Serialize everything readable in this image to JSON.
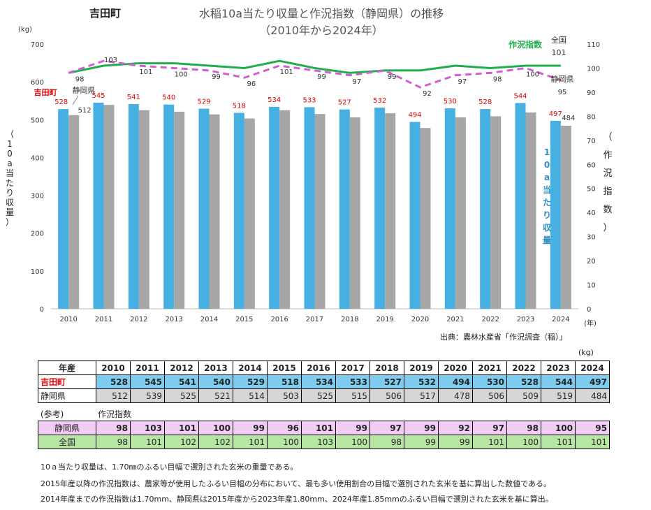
{
  "header": {
    "town": "吉田町",
    "title_line1": "水稲10a当たり収量と作況指数（静岡県）の推移",
    "title_line2": "（2010年から2024年）"
  },
  "chart_data": {
    "type": "bar",
    "categories": [
      "2010",
      "2011",
      "2012",
      "2013",
      "2014",
      "2015",
      "2016",
      "2017",
      "2018",
      "2019",
      "2020",
      "2021",
      "2022",
      "2023",
      "2024"
    ],
    "series": [
      {
        "name": "吉田町",
        "type": "bar",
        "axis": "left",
        "color": "#45b0e1",
        "values": [
          528,
          545,
          541,
          540,
          529,
          518,
          534,
          533,
          527,
          532,
          494,
          530,
          528,
          544,
          497
        ]
      },
      {
        "name": "静岡県",
        "type": "bar",
        "axis": "left",
        "color": "#a6a6a6",
        "values": [
          512,
          539,
          525,
          521,
          514,
          503,
          525,
          515,
          506,
          517,
          478,
          506,
          509,
          519,
          484
        ]
      },
      {
        "name": "作況指数 全国",
        "type": "line",
        "axis": "right",
        "color": "#1fae4a",
        "values": [
          98,
          101,
          102,
          102,
          101,
          100,
          103,
          100,
          98,
          99,
          99,
          101,
          100,
          101,
          101
        ]
      },
      {
        "name": "作況指数 静岡県",
        "type": "line",
        "axis": "right",
        "color": "#d25fd0",
        "dashed": true,
        "values": [
          98,
          103,
          101,
          100,
          99,
          96,
          101,
          99,
          97,
          99,
          92,
          97,
          98,
          100,
          95
        ]
      }
    ],
    "ylim_left": [
      0,
      700
    ],
    "yticks_left": [
      0,
      100,
      200,
      300,
      400,
      500,
      600,
      700
    ],
    "ylim_right": [
      0,
      110
    ],
    "yticks_right": [
      0,
      10,
      20,
      30,
      40,
      50,
      60,
      70,
      80,
      90,
      100,
      110
    ],
    "ylabel_left": "10a当たり収量",
    "ylabel_left_unit": "(kg)",
    "ylabel_right": "作況指数",
    "xlabel_unit": "(年)",
    "annotations": {
      "bar_legend_town": "吉田町",
      "bar_legend_pref": "静岡県",
      "line_label_index": "作況指数",
      "line_label_national": "全国",
      "line_label_national_value": "101",
      "line_label_pref": "静岡県",
      "line_label_pref_value": "95",
      "inner_label": "10a当たり収量"
    }
  },
  "source": "出典：農林水産省「作況調査（稲）」",
  "table_unit": "(kg)",
  "table1": {
    "header_label": "年産",
    "years": [
      "2010",
      "2011",
      "2012",
      "2013",
      "2014",
      "2015",
      "2016",
      "2017",
      "2018",
      "2019",
      "2020",
      "2021",
      "2022",
      "2023",
      "2024"
    ],
    "rows": [
      {
        "label": "吉田町",
        "values": [
          "528",
          "545",
          "541",
          "540",
          "529",
          "518",
          "534",
          "533",
          "527",
          "532",
          "494",
          "530",
          "528",
          "544",
          "497"
        ]
      },
      {
        "label": "静岡県",
        "values": [
          "512",
          "539",
          "525",
          "521",
          "514",
          "503",
          "525",
          "515",
          "506",
          "517",
          "478",
          "506",
          "509",
          "519",
          "484"
        ]
      }
    ]
  },
  "reference_label": "(参考)",
  "index_label": "作況指数",
  "table2": {
    "rows": [
      {
        "label": "静岡県",
        "values": [
          "98",
          "103",
          "101",
          "100",
          "99",
          "96",
          "101",
          "99",
          "97",
          "99",
          "92",
          "97",
          "98",
          "100",
          "95"
        ]
      },
      {
        "label": "全国",
        "values": [
          "98",
          "101",
          "102",
          "102",
          "101",
          "100",
          "103",
          "100",
          "98",
          "99",
          "99",
          "101",
          "100",
          "101",
          "101"
        ]
      }
    ]
  },
  "notes": [
    "10ａ当たり収量は、1.70㎜のふるい目幅で選別された玄米の重量である。",
    "2015年産以降の作況指数は、農家等が使用したふるい目幅の分布において、最も多い使用割合の目幅で選別された玄米を基に算出した数値である。",
    "2014年産までの作況指数は1.70mm、静岡県は2015年産から2023年産1.80mm、2024年産1.85mmのふるい目幅で選別された玄米を基に算出。"
  ]
}
